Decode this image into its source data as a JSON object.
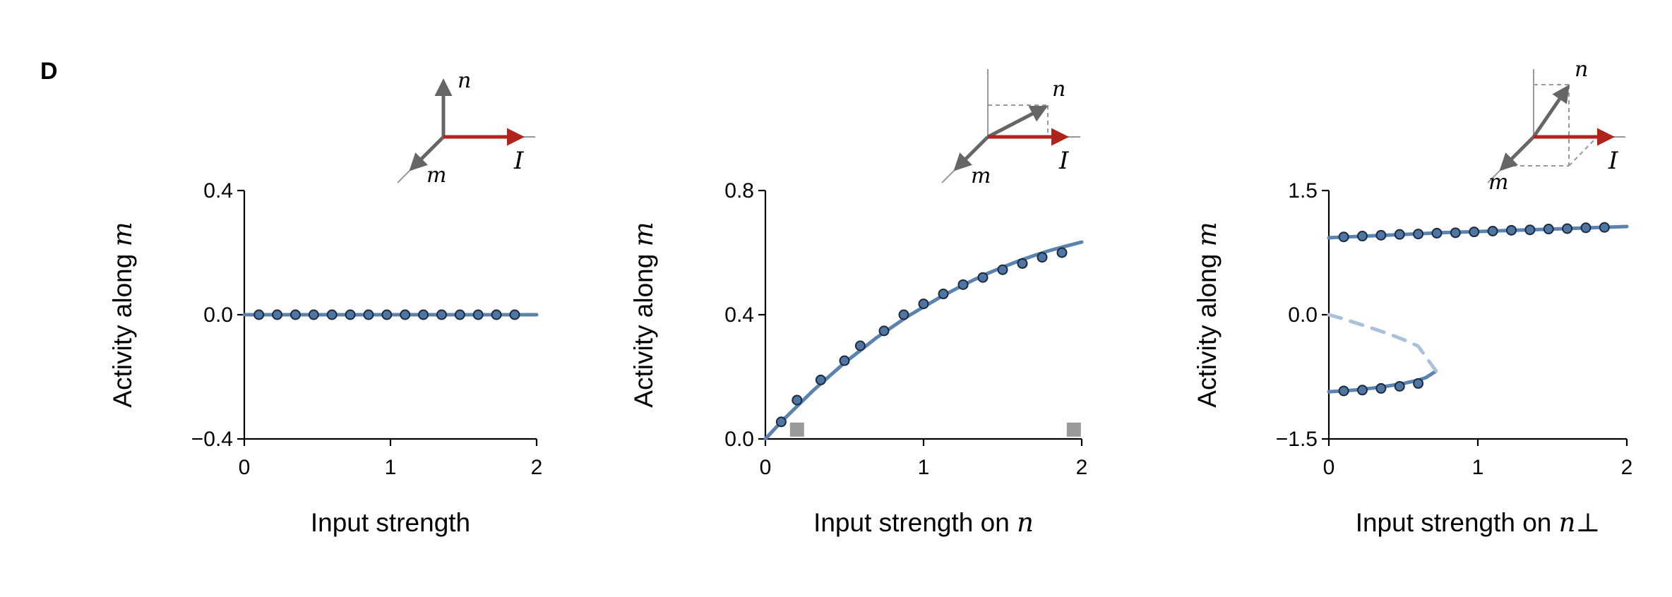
{
  "panel_label": "D",
  "colors": {
    "curve": "#5b83b0",
    "curve_dashed": "#a9c1da",
    "marker_fill": "#4f76a3",
    "marker_edge": "#1b2a3e",
    "input_arrow": "#b0221c",
    "vector_arrow": "#666666",
    "guide": "#999999",
    "square": "#999999"
  },
  "insets": [
    {
      "label_n": "n",
      "label_m": "m",
      "label_I": "I"
    },
    {
      "label_n": "n",
      "label_m": "m",
      "label_I": "I"
    },
    {
      "label_n": "n",
      "label_m": "m",
      "label_I": "I"
    }
  ],
  "chart_data": [
    {
      "type": "line",
      "xlabel": "Input strength",
      "xlabel_sym": "",
      "ylabel": "Activity along ",
      "ylabel_sym": "m",
      "xlim": [
        0,
        2
      ],
      "ylim": [
        -0.4,
        0.4
      ],
      "xticks": [
        0,
        1,
        2
      ],
      "xtick_labels": [
        "0",
        "1",
        "2"
      ],
      "yticks": [
        -0.4,
        0.0,
        0.4
      ],
      "ytick_labels": [
        "−0.4",
        "0.0",
        "0.4"
      ],
      "series": [
        {
          "style": "solid",
          "x": [
            0,
            2
          ],
          "y": [
            0,
            0
          ]
        }
      ],
      "points": {
        "x": [
          0.1,
          0.225,
          0.35,
          0.475,
          0.6,
          0.725,
          0.85,
          0.975,
          1.1,
          1.225,
          1.35,
          1.475,
          1.6,
          1.725,
          1.85
        ],
        "y": [
          0,
          0,
          0,
          0,
          0,
          0,
          0,
          0,
          0,
          0,
          0,
          0,
          0,
          0,
          0
        ]
      },
      "squares": []
    },
    {
      "type": "line",
      "xlabel": "Input strength on ",
      "xlabel_sym": "n",
      "ylabel": "Activity along ",
      "ylabel_sym": "m",
      "xlim": [
        0,
        2
      ],
      "ylim": [
        0.0,
        0.8
      ],
      "xticks": [
        0,
        1,
        2
      ],
      "xtick_labels": [
        "0",
        "1",
        "2"
      ],
      "yticks": [
        0.0,
        0.4,
        0.8
      ],
      "ytick_labels": [
        "0.0",
        "0.4",
        "0.8"
      ],
      "series": [
        {
          "style": "solid",
          "x": [
            0,
            0.1,
            0.2,
            0.3,
            0.4,
            0.5,
            0.6,
            0.7,
            0.8,
            0.9,
            1.0,
            1.1,
            1.2,
            1.3,
            1.4,
            1.5,
            1.6,
            1.7,
            1.8,
            1.9,
            2.0
          ],
          "y": [
            0,
            0.055,
            0.105,
            0.155,
            0.2,
            0.245,
            0.285,
            0.325,
            0.36,
            0.395,
            0.425,
            0.455,
            0.482,
            0.508,
            0.532,
            0.553,
            0.573,
            0.591,
            0.607,
            0.621,
            0.634
          ]
        }
      ],
      "points": {
        "x": [
          0.1,
          0.2,
          0.35,
          0.5,
          0.6,
          0.75,
          0.875,
          1.0,
          1.125,
          1.25,
          1.375,
          1.5,
          1.625,
          1.75,
          1.875
        ],
        "y": [
          0.055,
          0.125,
          0.19,
          0.252,
          0.3,
          0.348,
          0.4,
          0.435,
          0.467,
          0.497,
          0.52,
          0.545,
          0.565,
          0.585,
          0.6
        ]
      },
      "squares": [
        {
          "x": 0.2,
          "y": 0.03
        },
        {
          "x": 1.95,
          "y": 0.03
        }
      ]
    },
    {
      "type": "line",
      "xlabel": "Input strength on ",
      "xlabel_sym": "n⊥",
      "ylabel": "Activity along ",
      "ylabel_sym": "m",
      "xlim": [
        0,
        2
      ],
      "ylim": [
        -1.5,
        1.5
      ],
      "xticks": [
        0,
        1,
        2
      ],
      "xtick_labels": [
        "0",
        "1",
        "2"
      ],
      "yticks": [
        -1.5,
        0.0,
        1.5
      ],
      "ytick_labels": [
        "−1.5",
        "0.0",
        "1.5"
      ],
      "series": [
        {
          "style": "solid",
          "x": [
            0,
            0.25,
            0.5,
            0.75,
            1.0,
            1.25,
            1.5,
            1.75,
            2.0
          ],
          "y": [
            0.93,
            0.95,
            0.97,
            0.99,
            1.005,
            1.02,
            1.035,
            1.05,
            1.065
          ]
        },
        {
          "style": "solid",
          "x": [
            0,
            0.1,
            0.2,
            0.3,
            0.4,
            0.5,
            0.6,
            0.65,
            0.72
          ],
          "y": [
            -0.93,
            -0.92,
            -0.905,
            -0.885,
            -0.86,
            -0.83,
            -0.79,
            -0.76,
            -0.68
          ]
        },
        {
          "style": "dashed",
          "x": [
            0,
            0.1,
            0.2,
            0.3,
            0.4,
            0.5,
            0.6,
            0.72
          ],
          "y": [
            0,
            -0.05,
            -0.11,
            -0.17,
            -0.23,
            -0.3,
            -0.38,
            -0.68
          ]
        }
      ],
      "points": {
        "x": [
          0.1,
          0.225,
          0.35,
          0.475,
          0.6,
          0.725,
          0.85,
          0.975,
          1.1,
          1.225,
          1.35,
          1.475,
          1.6,
          1.725,
          1.85,
          0.1,
          0.225,
          0.35,
          0.475,
          0.6
        ],
        "y": [
          0.94,
          0.95,
          0.96,
          0.97,
          0.975,
          0.985,
          0.99,
          1.0,
          1.01,
          1.02,
          1.025,
          1.035,
          1.04,
          1.05,
          1.055,
          -0.92,
          -0.91,
          -0.89,
          -0.865,
          -0.83
        ]
      },
      "squares": []
    }
  ]
}
